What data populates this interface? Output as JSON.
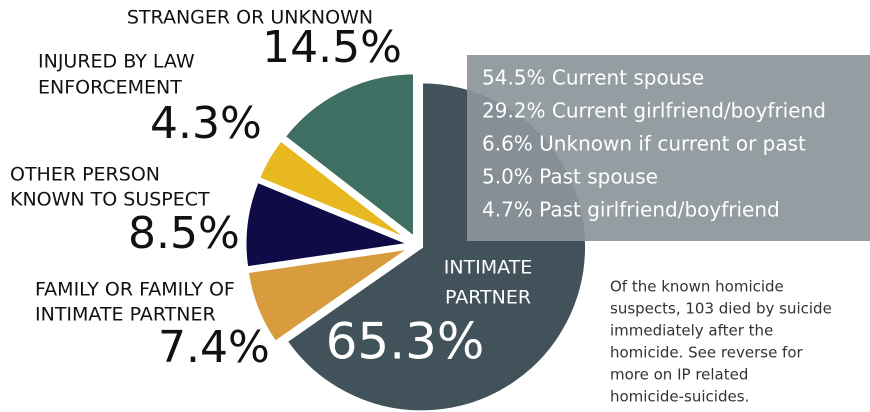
{
  "chart_data": {
    "type": "pie",
    "categories": [
      [
        "INTIMATE",
        "PARTNER"
      ],
      [
        "FAMILY OR FAMILY OF",
        "INTIMATE PARTNER"
      ],
      [
        "OTHER PERSON",
        "KNOWN TO SUSPECT"
      ],
      [
        "INJURED BY LAW",
        "ENFORCEMENT"
      ],
      [
        "STRANGER OR UNKNOWN"
      ]
    ],
    "values": [
      65.3,
      7.4,
      8.5,
      4.3,
      14.5
    ],
    "value_labels": [
      "65.3%",
      "7.4%",
      "8.5%",
      "4.3%",
      "14.5%"
    ],
    "colors": [
      "#42525b",
      "#d89b3d",
      "#0e0b47",
      "#e8b821",
      "#3f6f63"
    ]
  },
  "breakdown": [
    "54.5% Current spouse",
    "29.2% Current girlfriend/boyfriend",
    "6.6% Unknown if current or past",
    "5.0% Past spouse",
    "4.7% Past girlfriend/boyfriend"
  ],
  "note": [
    "Of the known homicide",
    "suspects, 103 died by suicide",
    "immediately after the",
    "homicide. See reverse for",
    "more on IP related",
    "homicide-suicides."
  ]
}
